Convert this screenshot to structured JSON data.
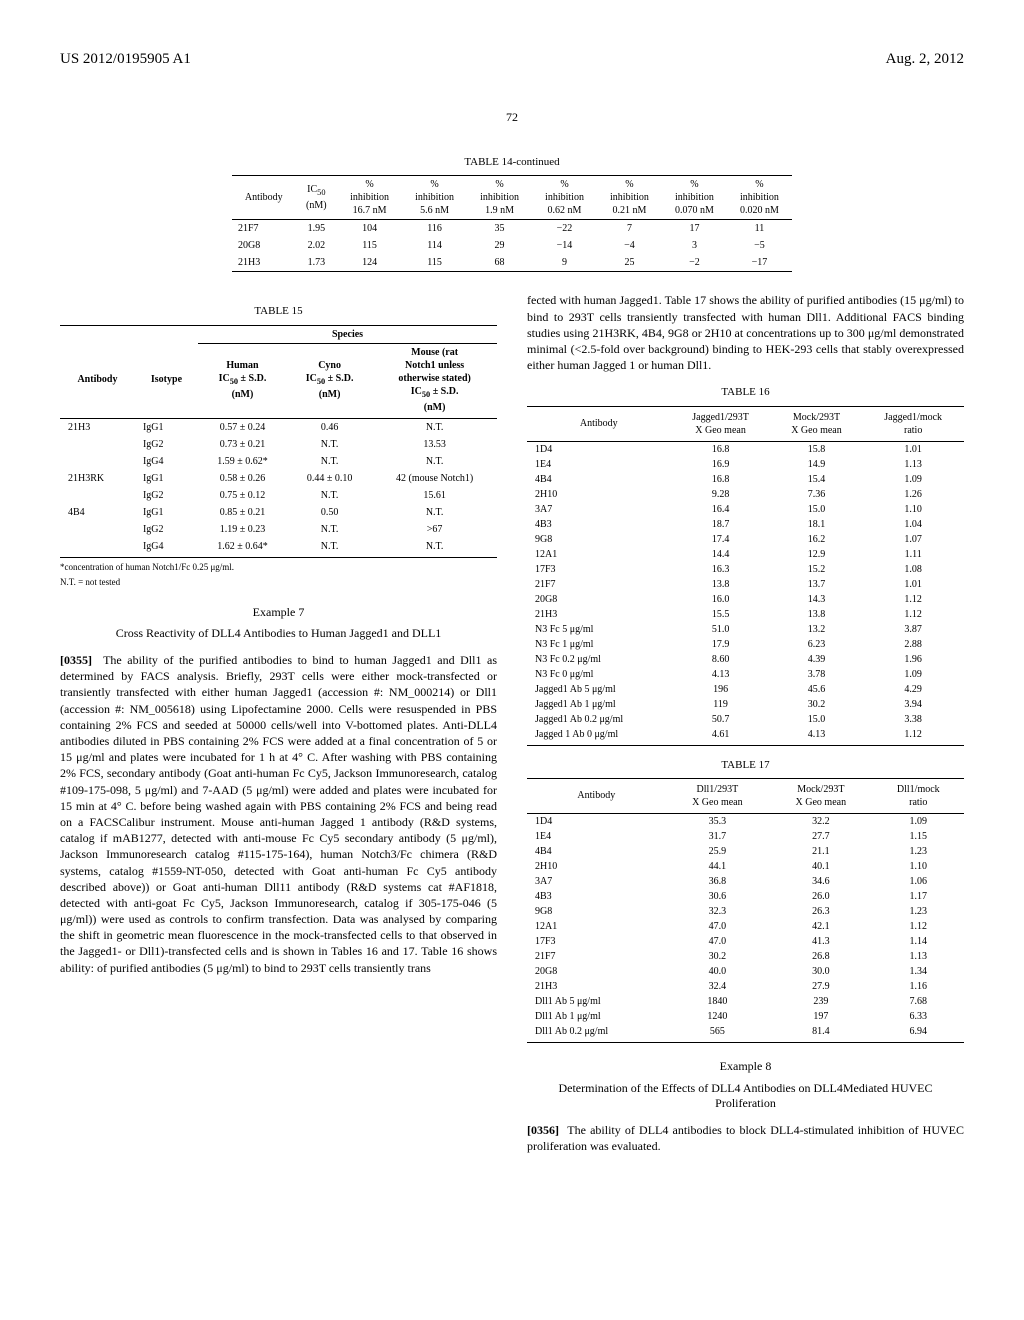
{
  "header": {
    "doc_id": "US 2012/0195905 A1",
    "date": "Aug. 2, 2012",
    "page_num": "72"
  },
  "table14": {
    "title": "TABLE 14-continued",
    "headers": [
      "Antibody",
      "IC₅₀ (nM)",
      "% inhibition 16.7 nM",
      "% inhibition 5.6 nM",
      "% inhibition 1.9 nM",
      "% inhibition 0.62 nM",
      "% inhibition 0.21 nM",
      "% inhibition 0.070 nM",
      "% inhibition 0.020 nM"
    ],
    "rows": [
      [
        "21F7",
        "1.95",
        "104",
        "116",
        "35",
        "−22",
        "7",
        "17",
        "11"
      ],
      [
        "20G8",
        "2.02",
        "115",
        "114",
        "29",
        "−14",
        "−4",
        "3",
        "−5"
      ],
      [
        "21H3",
        "1.73",
        "124",
        "115",
        "68",
        "9",
        "25",
        "−2",
        "−17"
      ]
    ]
  },
  "table15": {
    "title": "TABLE 15",
    "species_label": "Species",
    "headers": [
      "Antibody",
      "Isotype",
      "Human IC₅₀ ± S.D. (nM)",
      "Cyno IC₅₀ ± S.D. (nM)",
      "Mouse (rat Notch1 unless otherwise stated) IC₅₀ ± S.D. (nM)"
    ],
    "rows": [
      [
        "21H3",
        "IgG1",
        "0.57 ± 0.24",
        "0.46",
        "N.T."
      ],
      [
        "",
        "IgG2",
        "0.73 ± 0.21",
        "N.T.",
        "13.53"
      ],
      [
        "",
        "IgG4",
        "1.59 ± 0.62*",
        "N.T.",
        "N.T."
      ],
      [
        "21H3RK",
        "IgG1",
        "0.58 ± 0.26",
        "0.44 ± 0.10",
        "42 (mouse Notch1)"
      ],
      [
        "",
        "IgG2",
        "0.75 ± 0.12",
        "N.T.",
        "15.61"
      ],
      [
        "4B4",
        "IgG1",
        "0.85 ± 0.21",
        "0.50",
        "N.T."
      ],
      [
        "",
        "IgG2",
        "1.19 ± 0.23",
        "N.T.",
        ">67"
      ],
      [
        "",
        "IgG4",
        "1.62 ± 0.64*",
        "N.T.",
        "N.T."
      ]
    ],
    "footnote1": "*concentration of human Notch1/Fc 0.25 μg/ml.",
    "footnote2": "N.T. = not tested"
  },
  "example7": {
    "title": "Example 7",
    "subtitle": "Cross Reactivity of DLL4 Antibodies to Human Jagged1 and DLL1",
    "para_num": "[0355]",
    "para": "The ability of the purified antibodies to bind to human Jagged1 and Dll1 as determined by FACS analysis. Briefly, 293T cells were either mock-transfected or transiently transfected with either human Jagged1 (accession #: NM_000214) or Dll1 (accession #: NM_005618) using Lipofectamine 2000. Cells were resuspended in PBS containing 2% FCS and seeded at 50000 cells/well into V-bottomed plates. Anti-DLL4 antibodies diluted in PBS containing 2% FCS were added at a final concentration of 5 or 15 μg/ml and plates were incubated for 1 h at 4° C. After washing with PBS containing 2% FCS, secondary antibody (Goat anti-human Fc Cy5, Jackson Immunoresearch, catalog #109-175-098, 5 μg/ml) and 7-AAD (5 μg/ml) were added and plates were incubated for 15 min at 4° C. before being washed again with PBS containing 2% FCS and being read on a FACSCalibur instrument. Mouse anti-human Jagged 1 antibody (R&D systems, catalog if mAB1277, detected with anti-mouse Fc Cy5 secondary antibody (5 μg/ml), Jackson Immunoresearch catalog #115-175-164), human Notch3/Fc chimera (R&D systems, catalog #1559-NT-050, detected with Goat anti-human Fc Cy5 antibody described above)) or Goat anti-human Dll11 antibody (R&D systems cat #AF1818, detected with anti-goat Fc Cy5, Jackson Immunoresearch, catalog if 305-175-046 (5 μg/ml)) were used as controls to confirm transfection. Data was analysed by comparing the shift in geometric mean fluorescence in the mock-transfected cells to that observed in the Jagged1- or Dll1)-transfected cells and is shown in Tables 16 and 17. Table 16 shows ability: of purified antibodies (5 μg/ml) to bind to 293T cells transiently trans"
  },
  "right_intro": "fected with human Jagged1. Table 17 shows the ability of purified antibodies (15 μg/ml) to bind to 293T cells transiently transfected with human Dll1. Additional FACS binding studies using 21H3RK, 4B4, 9G8 or 2H10 at concentrations up to 300 μg/ml demonstrated minimal (<2.5-fold over background) binding to HEK-293 cells that stably overexpressed either human Jagged 1 or human Dll1.",
  "table16": {
    "title": "TABLE 16",
    "headers": [
      "Antibody",
      "Jagged1/293T X Geo mean",
      "Mock/293T X Geo mean",
      "Jagged1/mock ratio"
    ],
    "rows": [
      [
        "1D4",
        "16.8",
        "15.8",
        "1.01"
      ],
      [
        "1E4",
        "16.9",
        "14.9",
        "1.13"
      ],
      [
        "4B4",
        "16.8",
        "15.4",
        "1.09"
      ],
      [
        "2H10",
        "9.28",
        "7.36",
        "1.26"
      ],
      [
        "3A7",
        "16.4",
        "15.0",
        "1.10"
      ],
      [
        "4B3",
        "18.7",
        "18.1",
        "1.04"
      ],
      [
        "9G8",
        "17.4",
        "16.2",
        "1.07"
      ],
      [
        "12A1",
        "14.4",
        "12.9",
        "1.11"
      ],
      [
        "17F3",
        "16.3",
        "15.2",
        "1.08"
      ],
      [
        "21F7",
        "13.8",
        "13.7",
        "1.01"
      ],
      [
        "20G8",
        "16.0",
        "14.3",
        "1.12"
      ],
      [
        "21H3",
        "15.5",
        "13.8",
        "1.12"
      ],
      [
        "N3 Fc 5 μg/ml",
        "51.0",
        "13.2",
        "3.87"
      ],
      [
        "N3 Fc 1 μg/ml",
        "17.9",
        "6.23",
        "2.88"
      ],
      [
        "N3 Fc 0.2 μg/ml",
        "8.60",
        "4.39",
        "1.96"
      ],
      [
        "N3 Fc 0 μg/ml",
        "4.13",
        "3.78",
        "1.09"
      ],
      [
        "Jagged1 Ab 5 μg/ml",
        "196",
        "45.6",
        "4.29"
      ],
      [
        "Jagged1 Ab 1 μg/ml",
        "119",
        "30.2",
        "3.94"
      ],
      [
        "Jagged1 Ab 0.2 μg/ml",
        "50.7",
        "15.0",
        "3.38"
      ],
      [
        "Jagged 1 Ab 0 μg/ml",
        "4.61",
        "4.13",
        "1.12"
      ]
    ]
  },
  "table17": {
    "title": "TABLE 17",
    "headers": [
      "Antibody",
      "Dll1/293T X Geo mean",
      "Mock/293T X Geo mean",
      "Dll1/mock ratio"
    ],
    "rows": [
      [
        "1D4",
        "35.3",
        "32.2",
        "1.09"
      ],
      [
        "1E4",
        "31.7",
        "27.7",
        "1.15"
      ],
      [
        "4B4",
        "25.9",
        "21.1",
        "1.23"
      ],
      [
        "2H10",
        "44.1",
        "40.1",
        "1.10"
      ],
      [
        "3A7",
        "36.8",
        "34.6",
        "1.06"
      ],
      [
        "4B3",
        "30.6",
        "26.0",
        "1.17"
      ],
      [
        "9G8",
        "32.3",
        "26.3",
        "1.23"
      ],
      [
        "12A1",
        "47.0",
        "42.1",
        "1.12"
      ],
      [
        "17F3",
        "47.0",
        "41.3",
        "1.14"
      ],
      [
        "21F7",
        "30.2",
        "26.8",
        "1.13"
      ],
      [
        "20G8",
        "40.0",
        "30.0",
        "1.34"
      ],
      [
        "21H3",
        "32.4",
        "27.9",
        "1.16"
      ],
      [
        "Dll1 Ab 5 μg/ml",
        "1840",
        "239",
        "7.68"
      ],
      [
        "Dll1 Ab 1 μg/ml",
        "1240",
        "197",
        "6.33"
      ],
      [
        "Dll1 Ab 0.2 μg/ml",
        "565",
        "81.4",
        "6.94"
      ]
    ]
  },
  "example8": {
    "title": "Example 8",
    "subtitle": "Determination of the Effects of DLL4 Antibodies on DLL4Mediated HUVEC Proliferation",
    "para_num": "[0356]",
    "para": "The ability of DLL4 antibodies to block DLL4-stimulated inhibition of HUVEC proliferation was evaluated."
  }
}
